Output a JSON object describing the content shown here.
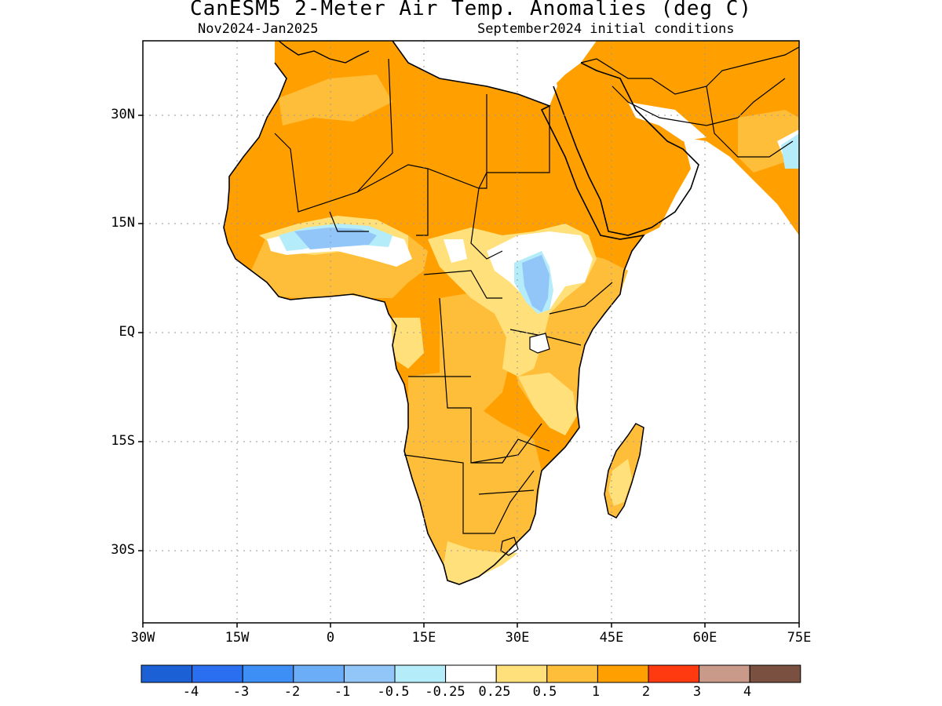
{
  "title": "CanESM5 2-Meter Air Temp. Anomalies (deg C)",
  "subtitle_left": "Nov2024-Jan2025",
  "subtitle_right": "September2024 initial conditions",
  "axes": {
    "y_ticks": [
      "30N",
      "15N",
      "EQ",
      "15S",
      "30S"
    ],
    "x_ticks": [
      "30W",
      "15W",
      "0",
      "15E",
      "30E",
      "45E",
      "60E",
      "75E"
    ]
  },
  "colorbar": {
    "labels": [
      "-4",
      "-3",
      "-2",
      "-1",
      "-0.5",
      "-0.25",
      "0.25",
      "0.5",
      "1",
      "2",
      "3",
      "4"
    ],
    "colors": [
      "#1c60d6",
      "#2a6ff0",
      "#3d8ff5",
      "#6cadf7",
      "#92c6f9",
      "#b4ecf9",
      "#ffffff",
      "#ffe07a",
      "#ffbe3a",
      "#ff9f00",
      "#ff3a10",
      "#c9998a",
      "#7a5040"
    ]
  },
  "map": {
    "region": "Africa",
    "lon_range": [
      "30W",
      "75E"
    ],
    "lat_range": [
      "40S",
      "40N"
    ]
  }
}
